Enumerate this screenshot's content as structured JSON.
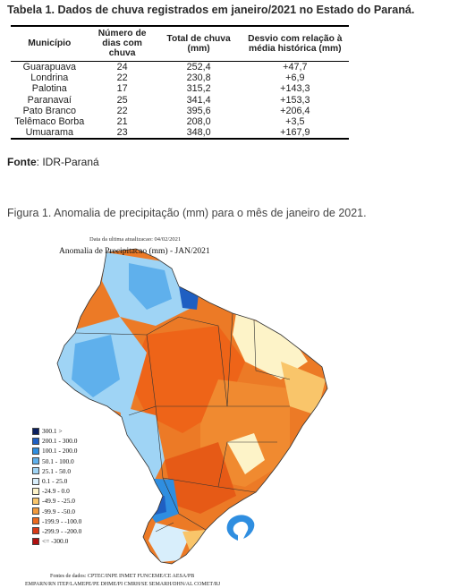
{
  "table_caption": "Tabela 1. Dados de chuva registrados em janeiro/2021 no Estado do Paraná.",
  "table": {
    "headers": [
      "Município",
      "Número de dias com chuva",
      "Total de chuva (mm)",
      "Desvio com relação à média histórica (mm)"
    ],
    "rows": [
      [
        "Guarapuava",
        "24",
        "252,4",
        "+47,7"
      ],
      [
        "Londrina",
        "22",
        "230,8",
        "+6,9"
      ],
      [
        "Palotina",
        "17",
        "315,2",
        "+143,3"
      ],
      [
        "Paranavaí",
        "25",
        "341,4",
        "+153,3"
      ],
      [
        "Pato Branco",
        "22",
        "395,6",
        "+206,4"
      ],
      [
        "Telêmaco Borba",
        "21",
        "208,0",
        "+3,5"
      ],
      [
        "Umuarama",
        "23",
        "348,0",
        "+167,9"
      ]
    ]
  },
  "source": {
    "label": "Fonte",
    "text": ": IDR-Paraná"
  },
  "figure_caption": "Figura 1. Anomalia de precipitação (mm) para o mês de janeiro de 2021.",
  "figure": {
    "update_date": "Data da ultima atualizacao: 04/02/2021",
    "title": "Anomalia de Precipitacao (mm) - JAN/2021",
    "legend": [
      {
        "label": "300.1 >",
        "color": "#0b1f5e"
      },
      {
        "label": "200.1 - 300.0",
        "color": "#1f5fc2"
      },
      {
        "label": "100.1 - 200.0",
        "color": "#2f8ee0"
      },
      {
        "label": "50.1 - 100.0",
        "color": "#5fb0ec"
      },
      {
        "label": "25.1 - 50.0",
        "color": "#9fd4f5"
      },
      {
        "label": "0.1 - 25.0",
        "color": "#d8eefb"
      },
      {
        "label": "-24.9 - 0.0",
        "color": "#fdf3c8"
      },
      {
        "label": "-49.9 - -25.0",
        "color": "#f9c56a"
      },
      {
        "label": "-99.9 - -50.0",
        "color": "#f29a3c"
      },
      {
        "label": "-199.9 - -100.0",
        "color": "#ec6a1e"
      },
      {
        "label": "-299.9 - -200.0",
        "color": "#d83a18"
      },
      {
        "label": "<= -300.0",
        "color": "#b01010"
      }
    ],
    "sources_line1": "Fontes de dados: CPTEC/INPE INMET FUNCEME/CE AESA/PB",
    "sources_line2": "EMPARN/RN ITEP/LAMEPE/PE DHME/PI CMRH/SE SEMARH/DHN/AL COMET/RJ"
  }
}
